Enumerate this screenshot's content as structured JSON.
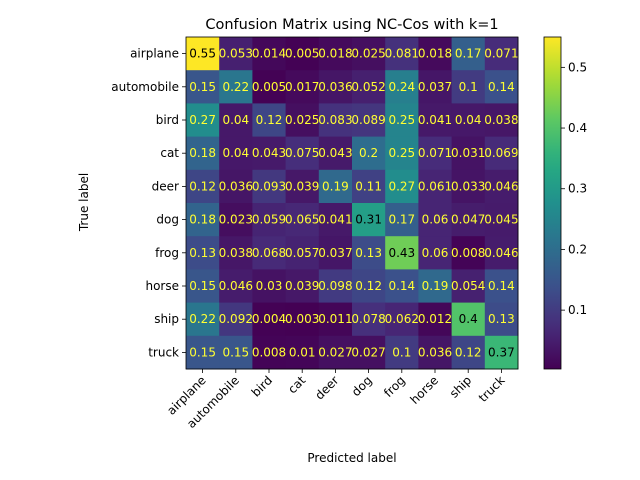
{
  "chart_data": {
    "type": "heatmap",
    "title": "Confusion Matrix using NC-Cos with k=1",
    "xlabel": "Predicted label",
    "ylabel": "True label",
    "categories": [
      "airplane",
      "automobile",
      "bird",
      "cat",
      "deer",
      "dog",
      "frog",
      "horse",
      "ship",
      "truck"
    ],
    "values": [
      [
        0.55,
        0.053,
        0.014,
        0.005,
        0.018,
        0.025,
        0.081,
        0.018,
        0.17,
        0.071
      ],
      [
        0.15,
        0.22,
        0.005,
        0.017,
        0.036,
        0.052,
        0.24,
        0.037,
        0.1,
        0.14
      ],
      [
        0.27,
        0.04,
        0.12,
        0.025,
        0.083,
        0.089,
        0.25,
        0.041,
        0.04,
        0.038
      ],
      [
        0.18,
        0.04,
        0.043,
        0.075,
        0.043,
        0.2,
        0.25,
        0.071,
        0.031,
        0.069
      ],
      [
        0.12,
        0.036,
        0.093,
        0.039,
        0.19,
        0.11,
        0.27,
        0.061,
        0.033,
        0.046
      ],
      [
        0.18,
        0.023,
        0.059,
        0.065,
        0.041,
        0.31,
        0.17,
        0.06,
        0.047,
        0.045
      ],
      [
        0.13,
        0.038,
        0.068,
        0.057,
        0.037,
        0.13,
        0.43,
        0.06,
        0.008,
        0.046
      ],
      [
        0.15,
        0.046,
        0.03,
        0.039,
        0.098,
        0.12,
        0.14,
        0.19,
        0.054,
        0.14
      ],
      [
        0.22,
        0.092,
        0.004,
        0.003,
        0.011,
        0.078,
        0.062,
        0.012,
        0.4,
        0.13
      ],
      [
        0.15,
        0.15,
        0.008,
        0.01,
        0.027,
        0.027,
        0.1,
        0.036,
        0.12,
        0.37
      ]
    ],
    "value_labels": [
      [
        "0.55",
        "0.053",
        "0.014",
        "0.005",
        "0.018",
        "0.025",
        "0.081",
        "0.018",
        "0.17",
        "0.071"
      ],
      [
        "0.15",
        "0.22",
        "0.005",
        "0.017",
        "0.036",
        "0.052",
        "0.24",
        "0.037",
        "0.1",
        "0.14"
      ],
      [
        "0.27",
        "0.04",
        "0.12",
        "0.025",
        "0.083",
        "0.089",
        "0.25",
        "0.041",
        "0.04",
        "0.038"
      ],
      [
        "0.18",
        "0.04",
        "0.043",
        "0.075",
        "0.043",
        "0.2",
        "0.25",
        "0.071",
        "0.031",
        "0.069"
      ],
      [
        "0.12",
        "0.036",
        "0.093",
        "0.039",
        "0.19",
        "0.11",
        "0.27",
        "0.061",
        "0.033",
        "0.046"
      ],
      [
        "0.18",
        "0.023",
        "0.059",
        "0.065",
        "0.041",
        "0.31",
        "0.17",
        "0.06",
        "0.047",
        "0.045"
      ],
      [
        "0.13",
        "0.038",
        "0.068",
        "0.057",
        "0.037",
        "0.13",
        "0.43",
        "0.06",
        "0.008",
        "0.046"
      ],
      [
        "0.15",
        "0.046",
        "0.03",
        "0.039",
        "0.098",
        "0.12",
        "0.14",
        "0.19",
        "0.054",
        "0.14"
      ],
      [
        "0.22",
        "0.092",
        "0.004",
        "0.003",
        "0.011",
        "0.078",
        "0.062",
        "0.012",
        "0.4",
        "0.13"
      ],
      [
        "0.15",
        "0.15",
        "0.008",
        "0.01",
        "0.027",
        "0.027",
        "0.1",
        "0.036",
        "0.12",
        "0.37"
      ]
    ],
    "colormap": "viridis",
    "color_range": [
      0.003,
      0.55
    ],
    "colorbar_ticks": [
      "0.1",
      "0.2",
      "0.3",
      "0.4",
      "0.5"
    ],
    "colorbar_tick_values": [
      0.1,
      0.2,
      0.3,
      0.4,
      0.5
    ],
    "x_tick_rotation": "45 degrees",
    "grid": false,
    "colors": {
      "text_on_dark": "#ffff33",
      "text_on_light": "#000000",
      "frame": "#000000"
    }
  }
}
